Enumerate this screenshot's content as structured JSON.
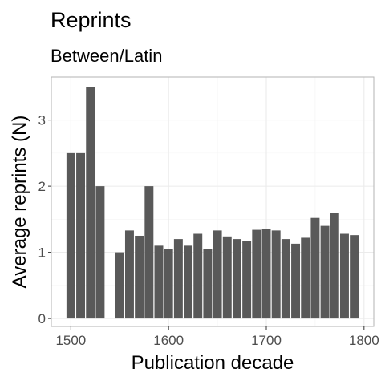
{
  "chart_data": {
    "type": "bar",
    "title": "Reprints",
    "subtitle": "Between/Latin",
    "xlabel": "Publication decade",
    "ylabel": "Average reprints (N)",
    "xlim": [
      1480,
      1810
    ],
    "ylim": [
      -0.12,
      3.65
    ],
    "x_major_ticks": [
      1500,
      1600,
      1700,
      1800
    ],
    "x_minor_ticks": [
      1550,
      1650,
      1750
    ],
    "y_major_ticks": [
      0,
      1,
      2,
      3
    ],
    "y_minor_ticks": [
      0.5,
      1.5,
      2.5,
      3.5
    ],
    "x_tick_labels": [
      "1500",
      "1600",
      "1700",
      "1800"
    ],
    "y_tick_labels": [
      "0",
      "1",
      "2",
      "3"
    ],
    "grid": true,
    "bar_width": 9,
    "bar_color": "#595959",
    "x": [
      1500,
      1510,
      1520,
      1530,
      1550,
      1560,
      1570,
      1580,
      1590,
      1600,
      1610,
      1620,
      1630,
      1640,
      1650,
      1660,
      1670,
      1680,
      1690,
      1700,
      1710,
      1720,
      1730,
      1740,
      1750,
      1760,
      1770,
      1780,
      1790
    ],
    "values": [
      2.5,
      2.5,
      3.5,
      2.0,
      1.0,
      1.33,
      1.25,
      2.0,
      1.1,
      1.05,
      1.2,
      1.1,
      1.28,
      1.05,
      1.33,
      1.24,
      1.2,
      1.17,
      1.34,
      1.35,
      1.33,
      1.2,
      1.13,
      1.22,
      1.52,
      1.4,
      1.6,
      1.28,
      1.26
    ]
  }
}
